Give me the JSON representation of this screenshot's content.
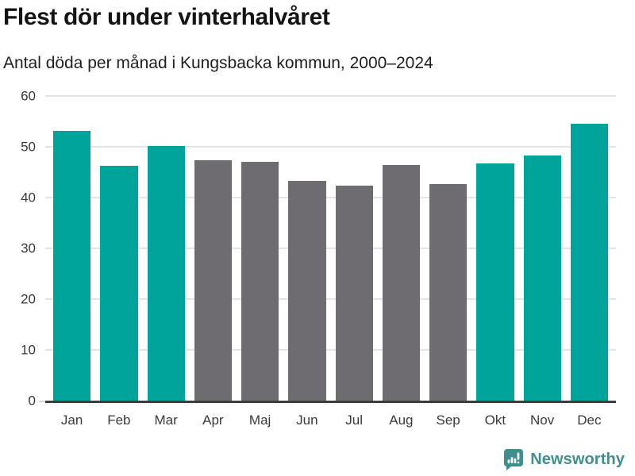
{
  "header": {
    "title": "Flest dör under vinterhalvåret",
    "subtitle": "Antal döda per månad i Kungsbacka kommun, 2000–2024"
  },
  "chart_data": {
    "type": "bar",
    "title": "Flest dör under vinterhalvåret",
    "subtitle": "Antal döda per månad i Kungsbacka kommun, 2000–2024",
    "categories": [
      "Jan",
      "Feb",
      "Mar",
      "Apr",
      "Maj",
      "Jun",
      "Jul",
      "Aug",
      "Sep",
      "Okt",
      "Nov",
      "Dec"
    ],
    "values": [
      53.1,
      46.3,
      50.1,
      47.4,
      47.1,
      43.3,
      42.4,
      46.4,
      42.6,
      46.7,
      48.3,
      54.5
    ],
    "color_key": [
      "highlight",
      "highlight",
      "highlight",
      "neutral",
      "neutral",
      "neutral",
      "neutral",
      "neutral",
      "neutral",
      "highlight",
      "highlight",
      "highlight"
    ],
    "palette": {
      "highlight": "#00a49a",
      "neutral": "#6e6c71"
    },
    "xlabel": "",
    "ylabel": "",
    "ylim": [
      0,
      60
    ],
    "yticks": [
      0,
      10,
      20,
      30,
      40,
      50,
      60
    ],
    "grid": true,
    "legend": "none",
    "gridline_color": "#e4e4e4",
    "baseline_color": "#3d3d3d"
  },
  "footer": {
    "brand": "Newsworthy",
    "brand_color": "#3e8f8e"
  }
}
